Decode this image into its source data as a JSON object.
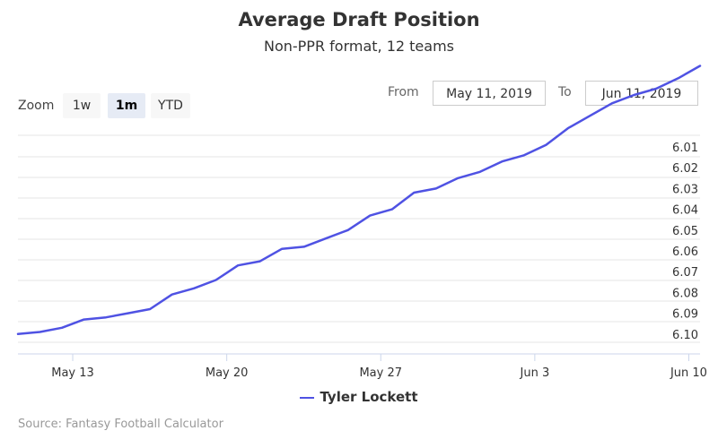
{
  "colors": {
    "series": "#4f52e3",
    "grid": "#e6e6e6",
    "axis": "#ccd6eb"
  },
  "zoom": {
    "label": "Zoom",
    "buttons": [
      {
        "label": "1w",
        "active": false
      },
      {
        "label": "1m",
        "active": true
      },
      {
        "label": "YTD",
        "active": false
      }
    ]
  },
  "range": {
    "from_label": "From",
    "from_value": "May 11, 2019",
    "to_label": "To",
    "to_value": "Jun 11, 2019"
  },
  "credits": "Source: Fantasy Football Calculator",
  "chart_data": {
    "type": "line",
    "title": "Average Draft Position",
    "subtitle": "Non-PPR format, 12 teams",
    "xlabel": "",
    "ylabel": "",
    "x_tick_labels": [
      "May 13",
      "May 20",
      "May 27",
      "Jun 3",
      "Jun 10"
    ],
    "y_tick_labels": [
      "6.01",
      "6.02",
      "6.03",
      "6.04",
      "6.05",
      "6.06",
      "6.07",
      "6.08",
      "6.09",
      "6.10"
    ],
    "y_axis": "reversed ADP, 6.01 at top",
    "grid": true,
    "legend_position": "bottom-center",
    "series": [
      {
        "name": "Tyler Lockett",
        "x": [
          "2019-05-11",
          "2019-05-12",
          "2019-05-13",
          "2019-05-14",
          "2019-05-15",
          "2019-05-16",
          "2019-05-17",
          "2019-05-18",
          "2019-05-19",
          "2019-05-20",
          "2019-05-21",
          "2019-05-22",
          "2019-05-23",
          "2019-05-24",
          "2019-05-25",
          "2019-05-26",
          "2019-05-27",
          "2019-05-28",
          "2019-05-29",
          "2019-05-30",
          "2019-05-31",
          "2019-06-01",
          "2019-06-02",
          "2019-06-03",
          "2019-06-04",
          "2019-06-05",
          "2019-06-06",
          "2019-06-07",
          "2019-06-08",
          "2019-06-09",
          "2019-06-10",
          "2019-06-11"
        ],
        "y": [
          6.1,
          6.099,
          6.097,
          6.093,
          6.092,
          6.09,
          6.088,
          6.081,
          6.078,
          6.074,
          6.067,
          6.065,
          6.059,
          6.058,
          6.054,
          6.05,
          6.043,
          6.04,
          6.032,
          6.03,
          6.025,
          6.022,
          6.017,
          6.014,
          6.009,
          6.001,
          5.995,
          5.989,
          5.985,
          5.982,
          5.977,
          5.971
        ]
      }
    ]
  }
}
